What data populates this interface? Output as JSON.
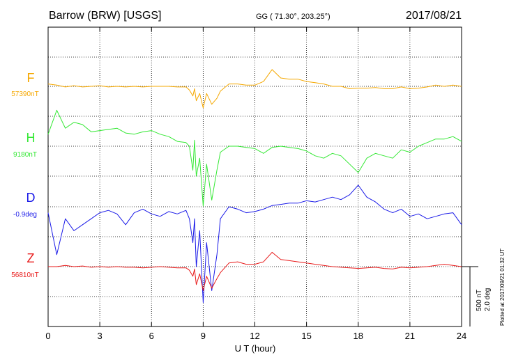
{
  "chart_data": {
    "type": "line",
    "title": "Barrow (BRW)  [USGS]",
    "coords": "GG ( 71.30°, 203.25°)",
    "date": "2017/08/21",
    "xlabel": "U T (hour)",
    "xlim": [
      0,
      24
    ],
    "xticks": [
      "0",
      "3",
      "6",
      "9",
      "12",
      "15",
      "18",
      "21",
      "24"
    ],
    "scale_label_1": "500 nT",
    "scale_label_2": "2.0 deg",
    "plotted_note": "Plotted at 2017/09/21 01:32 UT",
    "grid": "dotted",
    "series": [
      {
        "name": "F",
        "baseline_label": "57390nT",
        "color": "#f5a800",
        "x": [
          0,
          0.5,
          1,
          1.5,
          2,
          2.5,
          3,
          3.5,
          4,
          4.5,
          5,
          5.5,
          6,
          6.5,
          7,
          7.5,
          8,
          8.2,
          8.4,
          8.5,
          8.6,
          8.8,
          9,
          9.2,
          9.5,
          9.8,
          10,
          10.5,
          11,
          11.5,
          12,
          12.5,
          13,
          13.5,
          14,
          14.5,
          15,
          15.5,
          16,
          16.5,
          17,
          17.5,
          18,
          18.5,
          19,
          19.5,
          20,
          20.5,
          21,
          21.5,
          22,
          22.5,
          23,
          23.5,
          24
        ],
        "y": [
          20,
          10,
          -5,
          5,
          -5,
          0,
          5,
          -5,
          0,
          -5,
          0,
          -5,
          0,
          0,
          0,
          -5,
          -5,
          -30,
          -80,
          -20,
          -120,
          -60,
          -180,
          -60,
          -150,
          -100,
          -40,
          20,
          20,
          10,
          10,
          40,
          140,
          70,
          60,
          60,
          40,
          30,
          20,
          0,
          0,
          -20,
          -15,
          -15,
          -10,
          -20,
          -20,
          -5,
          -20,
          -15,
          -5,
          10,
          0,
          10,
          0
        ]
      },
      {
        "name": "H",
        "baseline_label": "9180nT",
        "color": "#33e833",
        "x": [
          0,
          0.5,
          1,
          1.5,
          2,
          2.5,
          3,
          3.5,
          4,
          4.5,
          5,
          5.5,
          6,
          6.5,
          7,
          7.5,
          8,
          8.2,
          8.4,
          8.5,
          8.6,
          8.8,
          9,
          9.2,
          9.5,
          9.8,
          10,
          10.5,
          11,
          11.5,
          12,
          12.5,
          13,
          13.5,
          14,
          14.5,
          15,
          15.5,
          16,
          16.5,
          17,
          17.5,
          18,
          18.5,
          19,
          19.5,
          20,
          20.5,
          21,
          21.5,
          22,
          22.5,
          23,
          23.5,
          24
        ],
        "y": [
          100,
          300,
          150,
          200,
          180,
          120,
          130,
          140,
          150,
          110,
          100,
          120,
          130,
          100,
          80,
          40,
          30,
          0,
          -200,
          50,
          -250,
          -100,
          -500,
          -150,
          -450,
          -200,
          -50,
          0,
          0,
          -10,
          -20,
          -60,
          -10,
          0,
          -10,
          -20,
          -40,
          -80,
          -100,
          -60,
          -80,
          -150,
          -220,
          -100,
          -60,
          -80,
          -100,
          -30,
          -50,
          0,
          30,
          60,
          60,
          80,
          40
        ]
      },
      {
        "name": "D",
        "baseline_label": "-0.9deg",
        "color": "#1a1ae8",
        "x": [
          0,
          0.5,
          1,
          1.5,
          2,
          2.5,
          3,
          3.5,
          4,
          4.5,
          5,
          5.5,
          6,
          6.5,
          7,
          7.5,
          8,
          8.2,
          8.4,
          8.5,
          8.6,
          8.8,
          9,
          9.2,
          9.5,
          9.8,
          10,
          10.5,
          11,
          11.5,
          12,
          12.5,
          13,
          13.5,
          14,
          14.5,
          15,
          15.5,
          16,
          16.5,
          17,
          17.5,
          18,
          18.5,
          19,
          19.5,
          20,
          20.5,
          21,
          21.5,
          22,
          22.5,
          23,
          23.5,
          24
        ],
        "y": [
          -50,
          -400,
          -100,
          -200,
          -150,
          -100,
          -50,
          -30,
          -60,
          -150,
          -50,
          -20,
          -60,
          -80,
          -40,
          -60,
          -30,
          -100,
          -300,
          -100,
          -500,
          -200,
          -800,
          -300,
          -700,
          -400,
          -100,
          0,
          -20,
          -50,
          -40,
          -20,
          10,
          20,
          30,
          30,
          50,
          40,
          60,
          80,
          60,
          100,
          180,
          80,
          40,
          -20,
          -50,
          -20,
          -80,
          -60,
          -100,
          -80,
          -60,
          -50,
          -150
        ]
      },
      {
        "name": "Z",
        "baseline_label": "56810nT",
        "color": "#e81a1a",
        "x": [
          0,
          0.5,
          1,
          1.5,
          2,
          2.5,
          3,
          3.5,
          4,
          4.5,
          5,
          5.5,
          6,
          6.5,
          7,
          7.5,
          8,
          8.2,
          8.4,
          8.5,
          8.6,
          8.8,
          9,
          9.2,
          9.5,
          9.8,
          10,
          10.5,
          11,
          11.5,
          12,
          12.5,
          13,
          13.5,
          14,
          14.5,
          15,
          15.5,
          16,
          16.5,
          17,
          17.5,
          18,
          18.5,
          19,
          19.5,
          20,
          20.5,
          21,
          21.5,
          22,
          22.5,
          23,
          23.5,
          24
        ],
        "y": [
          0,
          0,
          10,
          0,
          5,
          -5,
          0,
          -5,
          0,
          -5,
          -5,
          -10,
          -5,
          0,
          -5,
          -10,
          -10,
          -30,
          -80,
          -20,
          -150,
          -60,
          -200,
          -80,
          -180,
          -100,
          -50,
          30,
          40,
          20,
          20,
          40,
          120,
          60,
          50,
          40,
          30,
          20,
          10,
          0,
          -5,
          -10,
          -15,
          -10,
          -5,
          -15,
          -20,
          -5,
          -10,
          -5,
          0,
          10,
          20,
          10,
          0
        ]
      }
    ]
  }
}
